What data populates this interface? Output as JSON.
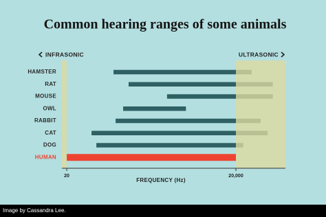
{
  "chart_data": {
    "type": "range_bar",
    "title": "Common hearing ranges of some animals",
    "categories": [
      "HAMSTER",
      "RAT",
      "MOUSE",
      "OWL",
      "RABBIT",
      "CAT",
      "DOG",
      "HUMAN"
    ],
    "low": [
      135,
      250,
      1200,
      200,
      147,
      55,
      67,
      20
    ],
    "high": [
      38000,
      90000,
      90000,
      2600,
      55000,
      73000,
      27000,
      20000
    ],
    "colors": [
      "#2f6164",
      "#2f6164",
      "#2f6164",
      "#2f6164",
      "#2f6164",
      "#2f6164",
      "#2f6164",
      "#ee4331"
    ],
    "label_colors": [
      "#2a2a2a",
      "#2a2a2a",
      "#2a2a2a",
      "#2a2a2a",
      "#2a2a2a",
      "#2a2a2a",
      "#2a2a2a",
      "#ee4331"
    ],
    "xlim": [
      16.4,
      151000
    ],
    "log_x": true,
    "xticks": [
      20,
      {
        "value": 20000,
        "label": "20,000"
      }
    ],
    "xlabel": "FREQUENCY (Hz)",
    "regions": [
      {
        "label": "INFRASONIC",
        "range": [
          16.4,
          20
        ],
        "color": "#dcd9a0"
      },
      {
        "label": "ULTRASONIC",
        "range": [
          20000,
          151000
        ],
        "color": "#dcd9a0"
      }
    ]
  },
  "credit": "Image by Cassandra Lee."
}
